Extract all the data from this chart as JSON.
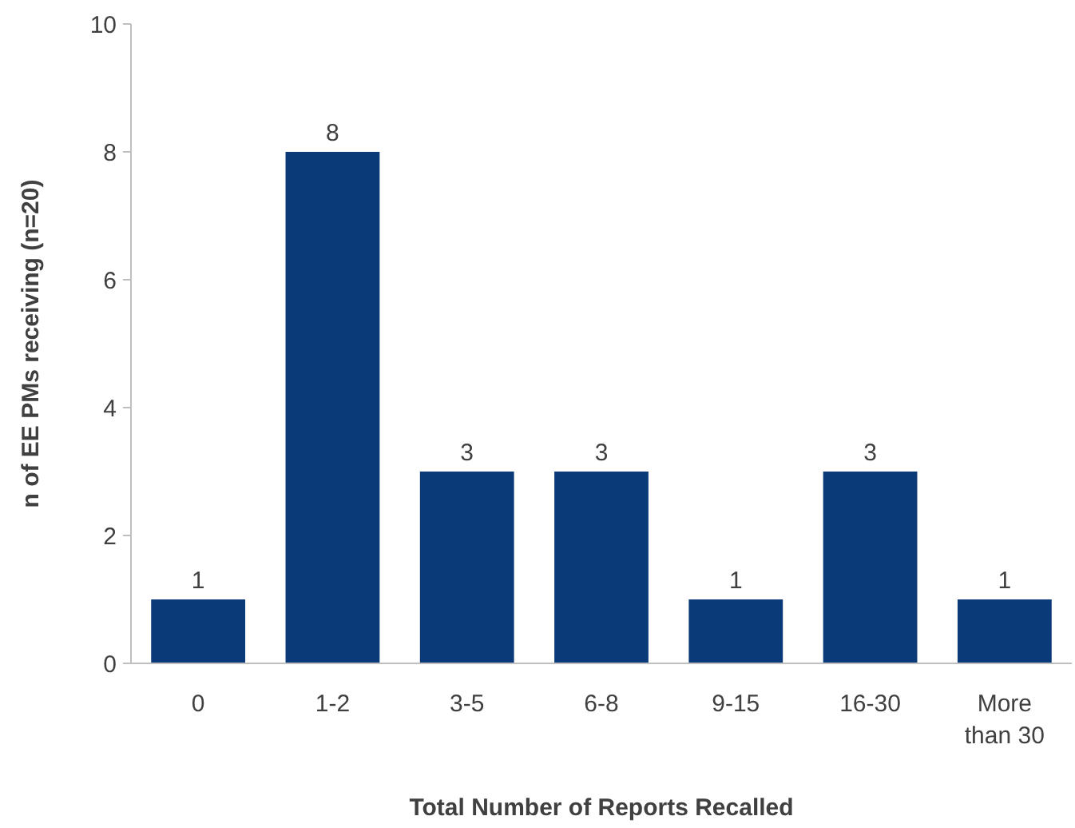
{
  "chart_data": {
    "type": "bar",
    "xlabel": "Total Number of Reports Recalled",
    "ylabel": "n of EE PMs receiving (n=20)",
    "categories": [
      "0",
      "1-2",
      "3-5",
      "6-8",
      "9-15",
      "16-30",
      "More than 30"
    ],
    "values": [
      1,
      8,
      3,
      3,
      1,
      3,
      1
    ],
    "color": "#0b3a78",
    "ylim": [
      0,
      10
    ],
    "yticks": [
      0,
      2,
      4,
      6,
      8,
      10
    ],
    "data_labels": true,
    "grid": false
  }
}
